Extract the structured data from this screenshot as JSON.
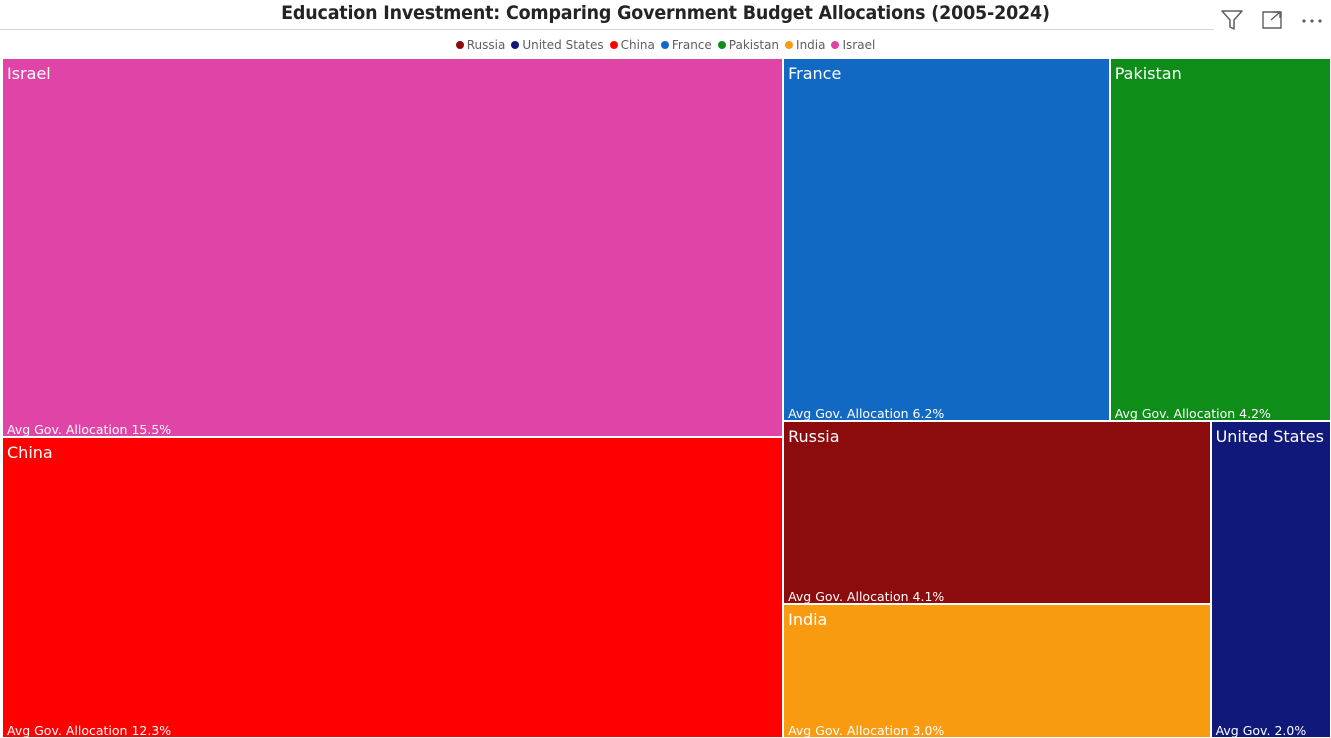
{
  "header": {
    "title": "Education Investment: Comparing Government Budget Allocations (2005-2024)",
    "icons": [
      "filter-icon",
      "focus-mode-icon",
      "more-options-icon"
    ]
  },
  "chart_data": {
    "type": "treemap",
    "title": "Education Investment: Comparing Government Budget Allocations (2005-2024)",
    "measure_label": "Avg Gov. Allocation",
    "legend_order": [
      "Russia",
      "United States",
      "China",
      "France",
      "Pakistan",
      "India",
      "Israel"
    ],
    "legend_placement": "top-center",
    "series": [
      {
        "name": "Israel",
        "value": 15.5,
        "value_text": "15.5%",
        "label_text": "Avg Gov. Allocation",
        "color": "#E044A7"
      },
      {
        "name": "China",
        "value": 12.3,
        "value_text": "12.3%",
        "label_text": "Avg Gov. Allocation",
        "color": "#FF0000"
      },
      {
        "name": "France",
        "value": 6.2,
        "value_text": "6.2%",
        "label_text": "Avg Gov. Allocation",
        "color": "#1269C4"
      },
      {
        "name": "Pakistan",
        "value": 4.2,
        "value_text": "4.2%",
        "label_text": "Avg Gov. Allocation",
        "color": "#0E8E18"
      },
      {
        "name": "Russia",
        "value": 4.1,
        "value_text": "4.1%",
        "label_text": "Avg Gov. Allocation",
        "color": "#8C0B0D"
      },
      {
        "name": "India",
        "value": 3.0,
        "value_text": "3.0%",
        "label_text": "Avg Gov. Allocation",
        "color": "#F99B11"
      },
      {
        "name": "United States",
        "value": 2.0,
        "value_text": "2.0%",
        "label_text": "Avg Gov.",
        "color": "#10197A"
      }
    ]
  }
}
